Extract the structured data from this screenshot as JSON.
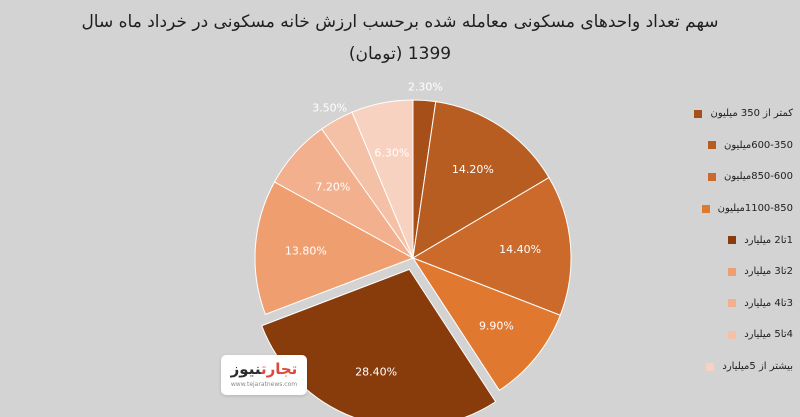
{
  "chart_data": {
    "type": "pie",
    "title": "سهم تعداد واحدهای مسکونی معامله شده برحسب ارزش خانه مسکونی در خرداد ماه سال",
    "subtitle": "1399 (تومان)",
    "legend_position": "right",
    "slices": [
      {
        "label": "کمتر از 350 میلیون",
        "value": 2.3,
        "value_label": "2.30%",
        "color": "#a64f19"
      },
      {
        "label": "600-350میلیون",
        "value": 14.2,
        "value_label": "14.20%",
        "color": "#b85d22"
      },
      {
        "label": "850-600میلیون",
        "value": 14.4,
        "value_label": "14.40%",
        "color": "#cc6a2b"
      },
      {
        "label": "1100-850میلیون",
        "value": 9.9,
        "value_label": "9.90%",
        "color": "#e0782f"
      },
      {
        "label": "1تا2 میلیارد",
        "value": 28.4,
        "value_label": "28.40%",
        "color": "#883c0c"
      },
      {
        "label": "2تا3 میلیارد",
        "value": 13.8,
        "value_label": "13.80%",
        "color": "#ef9e70"
      },
      {
        "label": "3تا4 میلیارد",
        "value": 7.2,
        "value_label": "7.20%",
        "color": "#f2b08e"
      },
      {
        "label": "4تا5 میلیارد",
        "value": 3.5,
        "value_label": "3.50%",
        "color": "#f5c1a6"
      },
      {
        "label": "بیشتر از 5میلیارد",
        "value": 6.3,
        "value_label": "6.30%",
        "color": "#f8d2c0"
      }
    ]
  },
  "logo": {
    "part1": "تجارت",
    "part2": "نیوز",
    "url": "www.tejaratnews.com"
  }
}
